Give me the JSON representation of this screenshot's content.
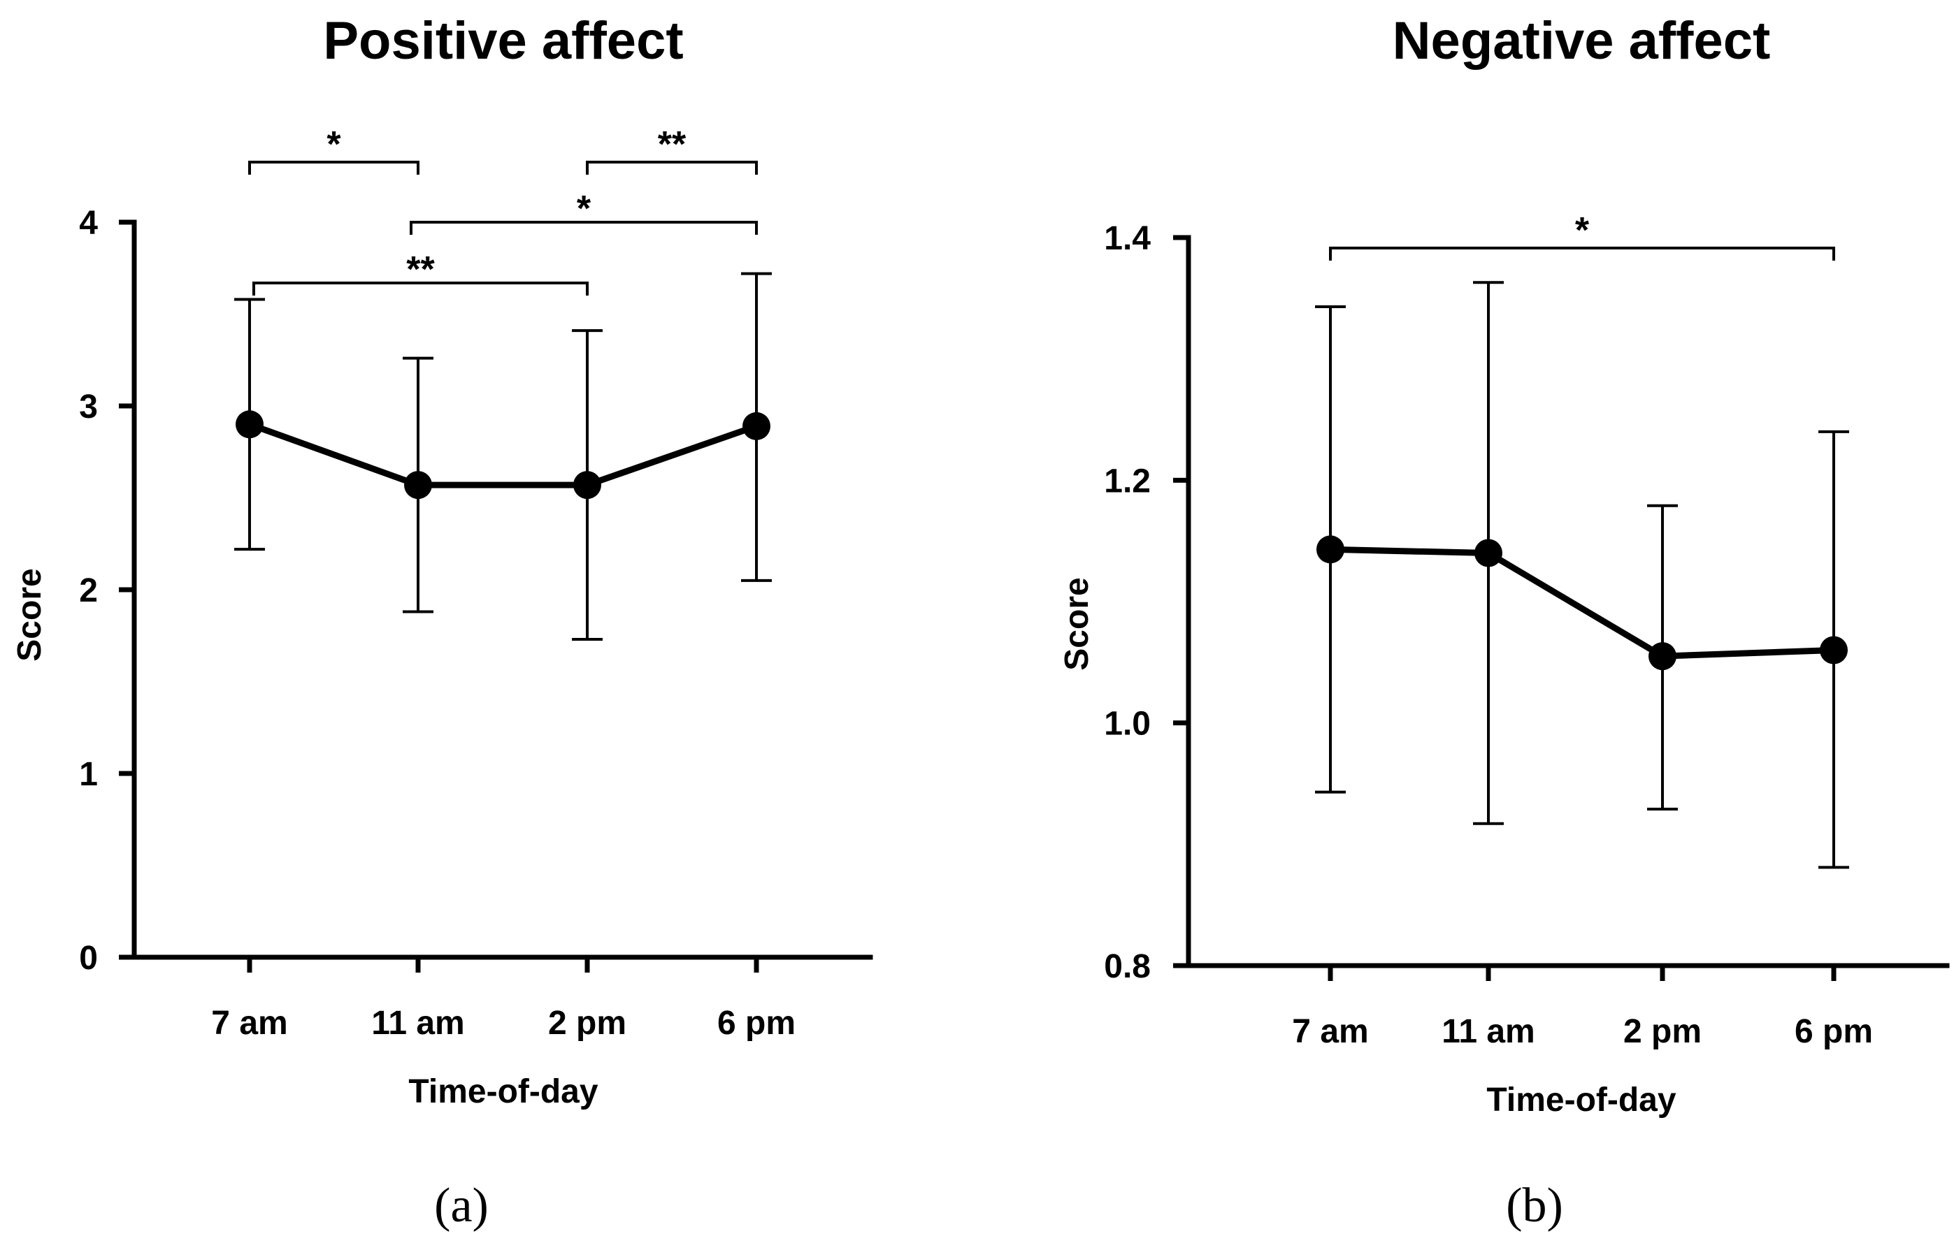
{
  "chart_data": [
    {
      "type": "line",
      "title": "Positive affect",
      "xlabel": "Time-of-day",
      "ylabel": "Score",
      "categories": [
        "7 am",
        "11 am",
        "2 pm",
        "6 pm"
      ],
      "values": [
        2.9,
        2.57,
        2.57,
        2.89
      ],
      "error_low": [
        2.22,
        1.88,
        1.73,
        2.05
      ],
      "error_high": [
        3.58,
        3.26,
        3.41,
        3.72
      ],
      "ylim": [
        0,
        4
      ],
      "yticks": [
        "0",
        "1",
        "2",
        "3",
        "4"
      ],
      "significance": [
        {
          "from": 0,
          "to": 1,
          "label": "*"
        },
        {
          "from": 2,
          "to": 3,
          "label": "**"
        },
        {
          "from": 1,
          "to": 3,
          "label": "*"
        },
        {
          "from": 0,
          "to": 2,
          "label": "**"
        }
      ],
      "panel_label": "(a)"
    },
    {
      "type": "line",
      "title": "Negative affect",
      "xlabel": "Time-of-day",
      "ylabel": "Score",
      "categories": [
        "7 am",
        "11 am",
        "2 pm",
        "6 pm"
      ],
      "values": [
        1.143,
        1.14,
        1.055,
        1.06
      ],
      "error_low": [
        0.943,
        0.917,
        0.929,
        0.881
      ],
      "error_high": [
        1.343,
        1.363,
        1.179,
        1.24
      ],
      "ylim": [
        0.8,
        1.4
      ],
      "yticks": [
        "0.8",
        "1.0",
        "1.2",
        "1.4"
      ],
      "significance": [
        {
          "from": 0,
          "to": 3,
          "label": "*"
        }
      ],
      "panel_label": "(b)"
    }
  ]
}
